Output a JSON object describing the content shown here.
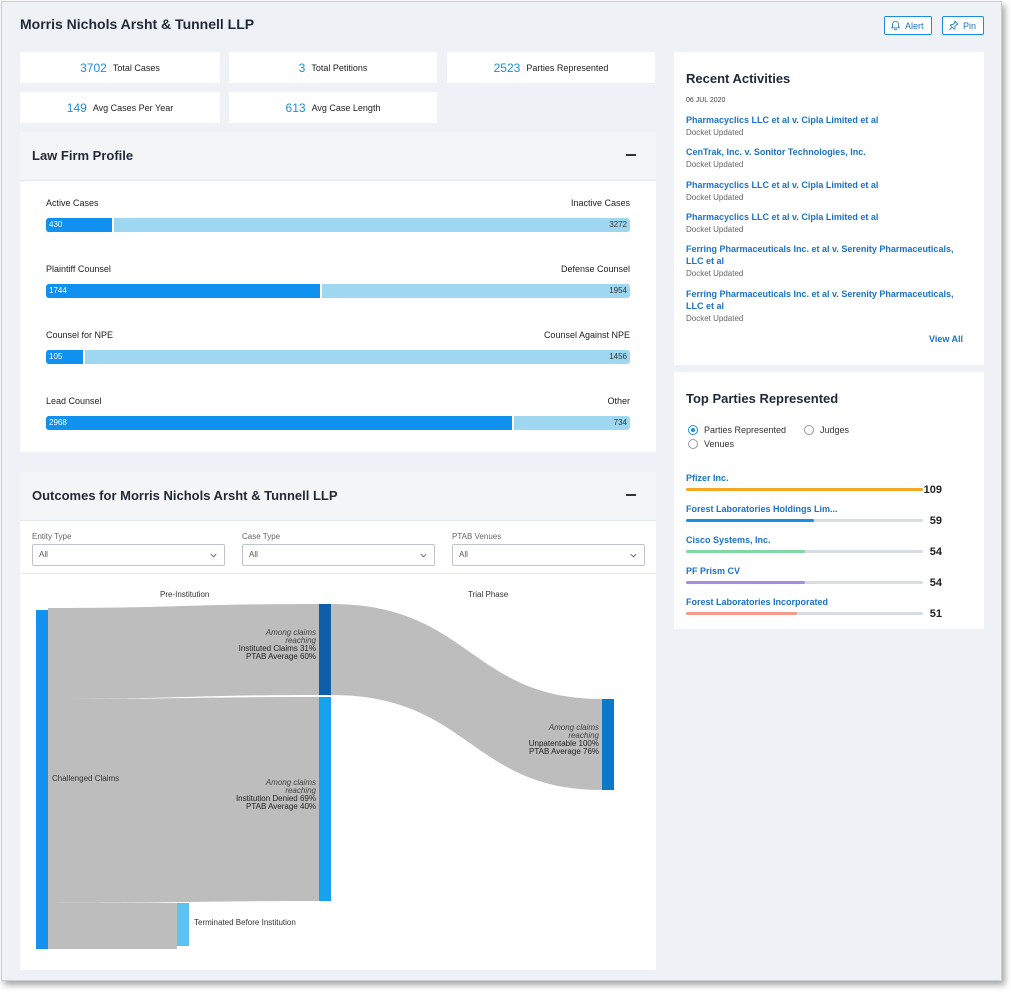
{
  "header": {
    "title": "Morris Nichols Arsht & Tunnell LLP",
    "alert_label": "Alert",
    "pin_label": "Pin"
  },
  "stats": [
    {
      "value": "3702",
      "label": "Total Cases"
    },
    {
      "value": "3",
      "label": "Total Petitions"
    },
    {
      "value": "2523",
      "label": "Parties Represented"
    },
    {
      "value": "149",
      "label": "Avg Cases Per Year"
    },
    {
      "value": "613",
      "label": "Avg Case Length"
    }
  ],
  "profile": {
    "title": "Law Firm Profile",
    "bars": [
      {
        "left_label": "Active Cases",
        "right_label": "Inactive Cases",
        "left_value": "430",
        "right_value": "3272",
        "left_fraction": 0.116
      },
      {
        "left_label": "Plaintiff Counsel",
        "right_label": "Defense Counsel",
        "left_value": "1744",
        "right_value": "1954",
        "left_fraction": 0.472
      },
      {
        "left_label": "Counsel for NPE",
        "right_label": "Counsel Against NPE",
        "left_value": "105",
        "right_value": "1456",
        "left_fraction": 0.067
      },
      {
        "left_label": "Lead Counsel",
        "right_label": "Other",
        "left_value": "2968",
        "right_value": "734",
        "left_fraction": 0.802
      }
    ]
  },
  "outcomes": {
    "title": "Outcomes for Morris Nichols Arsht & Tunnell LLP",
    "filters": [
      {
        "label": "Entity Type",
        "value": "All"
      },
      {
        "label": "Case Type",
        "value": "All"
      },
      {
        "label": "PTAB Venues",
        "value": "All"
      }
    ],
    "sankey": {
      "stage1": "Pre-Institution",
      "stage2": "Trial Phase",
      "challenged": "Challenged Claims",
      "terminated": "Terminated Before Institution",
      "instituted": {
        "l1": "Among claims",
        "l2": "reaching",
        "l3": "Instituted Claims 31%",
        "l4": "PTAB Average 60%"
      },
      "denied": {
        "l1": "Among claims",
        "l2": "reaching",
        "l3": "Institution Denied 69%",
        "l4": "PTAB Average 40%"
      },
      "unpatentable": {
        "l1": "Among claims",
        "l2": "reaching",
        "l3": "Unpatentable 100%",
        "l4": "PTAB Average 76%"
      }
    }
  },
  "recent": {
    "title": "Recent Activities",
    "date": "06 JUL 2020",
    "items": [
      {
        "title": "Pharmacyclics LLC et al v. Cipla Limited et al",
        "status": "Docket Updated"
      },
      {
        "title": "CenTrak, Inc. v. Sonitor Technologies, Inc.",
        "status": "Docket Updated"
      },
      {
        "title": "Pharmacyclics LLC et al v. Cipla Limited et al",
        "status": "Docket Updated"
      },
      {
        "title": "Pharmacyclics LLC et al v. Cipla Limited et al",
        "status": "Docket Updated"
      },
      {
        "title": "Ferring Pharmaceuticals Inc. et al v. Serenity Pharmaceuticals, LLC et al",
        "status": "Docket Updated"
      },
      {
        "title": "Ferring Pharmaceuticals Inc. et al v. Serenity Pharmaceuticals, LLC et al",
        "status": "Docket Updated"
      }
    ],
    "view_all": "View All"
  },
  "top_parties": {
    "title": "Top Parties Represented",
    "radios": [
      {
        "label": "Parties Represented",
        "selected": true
      },
      {
        "label": "Judges",
        "selected": false
      },
      {
        "label": "Venues",
        "selected": false
      }
    ],
    "items": [
      {
        "name": "Pfizer Inc.",
        "value": "109",
        "fraction": 1.0,
        "color": "#f5a623"
      },
      {
        "name": "Forest Laboratories Holdings Lim...",
        "value": "59",
        "fraction": 0.54,
        "color": "#1a8fe0"
      },
      {
        "name": "Cisco Systems, Inc.",
        "value": "54",
        "fraction": 0.5,
        "color": "#7fd8a6"
      },
      {
        "name": "PF Prism CV",
        "value": "54",
        "fraction": 0.5,
        "color": "#a78bdc"
      },
      {
        "name": "Forest Laboratories Incorporated",
        "value": "51",
        "fraction": 0.47,
        "color": "#f59b8b"
      }
    ]
  }
}
